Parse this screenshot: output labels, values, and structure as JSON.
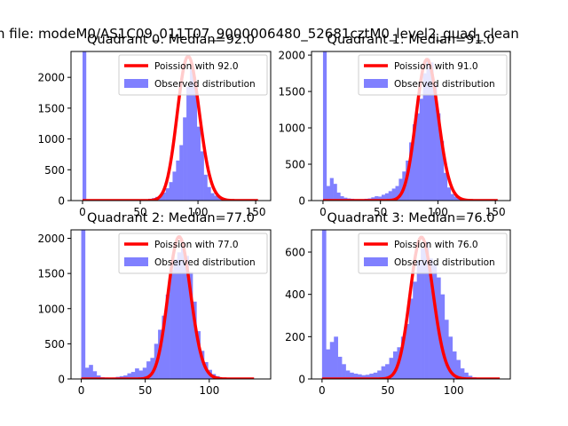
{
  "suptitle": "n file: modeM0/AS1C09_011T07_9000006480_52681cztM0_level2_quad_clean",
  "colors": {
    "hist": "#8080ff",
    "poisson": "#ff0000",
    "axis": "#000000"
  },
  "chart_data": [
    {
      "type": "bar",
      "title": "Quadrant 0: Median=92.0",
      "xlim": [
        -10,
        163
      ],
      "ylim": [
        0,
        2420
      ],
      "xticks": [
        0,
        50,
        100,
        150
      ],
      "yticks": [
        0,
        500,
        1000,
        1500,
        2000
      ],
      "legend": [
        "Poission with 92.0",
        "Observed distribution"
      ],
      "poisson_mean": 92,
      "poisson_scale": 2340,
      "hist_bins": [
        [
          0,
          2420
        ],
        [
          3,
          20
        ],
        [
          6,
          10
        ],
        [
          9,
          5
        ],
        [
          12,
          4
        ],
        [
          15,
          3
        ],
        [
          18,
          3
        ],
        [
          21,
          3
        ],
        [
          24,
          3
        ],
        [
          27,
          3
        ],
        [
          30,
          4
        ],
        [
          33,
          4
        ],
        [
          36,
          4
        ],
        [
          39,
          5
        ],
        [
          42,
          6
        ],
        [
          45,
          8
        ],
        [
          48,
          10
        ],
        [
          51,
          15
        ],
        [
          54,
          20
        ],
        [
          57,
          30
        ],
        [
          60,
          40
        ],
        [
          63,
          60
        ],
        [
          66,
          80
        ],
        [
          69,
          130
        ],
        [
          72,
          200
        ],
        [
          75,
          300
        ],
        [
          78,
          470
        ],
        [
          81,
          650
        ],
        [
          84,
          900
        ],
        [
          87,
          1350
        ],
        [
          90,
          1850
        ],
        [
          93,
          2150
        ],
        [
          96,
          1880
        ],
        [
          99,
          1200
        ],
        [
          102,
          800
        ],
        [
          105,
          420
        ],
        [
          108,
          220
        ],
        [
          111,
          120
        ],
        [
          114,
          80
        ],
        [
          117,
          55
        ],
        [
          120,
          35
        ],
        [
          123,
          20
        ],
        [
          126,
          10
        ],
        [
          129,
          5
        ],
        [
          132,
          3
        ],
        [
          135,
          2
        ],
        [
          138,
          2
        ],
        [
          141,
          1
        ],
        [
          144,
          1
        ],
        [
          147,
          1
        ],
        [
          150,
          1
        ]
      ]
    },
    {
      "type": "bar",
      "title": "Quadrant 1: Median=91.0",
      "xlim": [
        -10,
        163
      ],
      "ylim": [
        0,
        2050
      ],
      "xticks": [
        0,
        50,
        100,
        150
      ],
      "yticks": [
        0,
        500,
        1000,
        1500,
        2000
      ],
      "legend": [
        "Poission with 91.0",
        "Observed distribution"
      ],
      "poisson_mean": 91,
      "poisson_scale": 1940,
      "hist_bins": [
        [
          0,
          2050
        ],
        [
          3,
          200
        ],
        [
          6,
          310
        ],
        [
          9,
          230
        ],
        [
          12,
          110
        ],
        [
          15,
          60
        ],
        [
          18,
          40
        ],
        [
          21,
          30
        ],
        [
          24,
          25
        ],
        [
          27,
          20
        ],
        [
          30,
          20
        ],
        [
          33,
          20
        ],
        [
          36,
          25
        ],
        [
          39,
          30
        ],
        [
          42,
          45
        ],
        [
          45,
          60
        ],
        [
          48,
          55
        ],
        [
          51,
          80
        ],
        [
          54,
          100
        ],
        [
          57,
          130
        ],
        [
          60,
          165
        ],
        [
          63,
          200
        ],
        [
          66,
          300
        ],
        [
          69,
          400
        ],
        [
          72,
          550
        ],
        [
          75,
          800
        ],
        [
          78,
          1050
        ],
        [
          81,
          1200
        ],
        [
          84,
          1400
        ],
        [
          87,
          1750
        ],
        [
          90,
          1950
        ],
        [
          93,
          1900
        ],
        [
          96,
          1600
        ],
        [
          99,
          1200
        ],
        [
          102,
          820
        ],
        [
          105,
          380
        ],
        [
          108,
          180
        ],
        [
          111,
          90
        ],
        [
          114,
          55
        ],
        [
          117,
          30
        ],
        [
          120,
          20
        ],
        [
          123,
          10
        ],
        [
          126,
          5
        ],
        [
          129,
          3
        ],
        [
          132,
          2
        ],
        [
          135,
          2
        ],
        [
          138,
          1
        ],
        [
          141,
          1
        ],
        [
          144,
          1
        ],
        [
          147,
          1
        ],
        [
          150,
          1
        ]
      ]
    },
    {
      "type": "bar",
      "title": "Quadrant 2: Median=77.0",
      "xlim": [
        -8,
        148
      ],
      "ylim": [
        0,
        2120
      ],
      "xticks": [
        0,
        50,
        100
      ],
      "yticks": [
        0,
        500,
        1000,
        1500,
        2000
      ],
      "legend": [
        "Poission with 77.0",
        "Observed distribution"
      ],
      "poisson_mean": 77,
      "poisson_scale": 2020,
      "hist_bins": [
        [
          0,
          2120
        ],
        [
          3,
          160
        ],
        [
          6,
          200
        ],
        [
          9,
          110
        ],
        [
          12,
          50
        ],
        [
          15,
          25
        ],
        [
          18,
          20
        ],
        [
          21,
          15
        ],
        [
          24,
          20
        ],
        [
          27,
          30
        ],
        [
          30,
          40
        ],
        [
          33,
          50
        ],
        [
          36,
          80
        ],
        [
          39,
          100
        ],
        [
          42,
          150
        ],
        [
          45,
          120
        ],
        [
          48,
          160
        ],
        [
          51,
          250
        ],
        [
          54,
          300
        ],
        [
          57,
          500
        ],
        [
          60,
          700
        ],
        [
          63,
          900
        ],
        [
          66,
          1200
        ],
        [
          69,
          1550
        ],
        [
          72,
          1700
        ],
        [
          75,
          1800
        ],
        [
          78,
          1950
        ],
        [
          81,
          1750
        ],
        [
          84,
          1520
        ],
        [
          87,
          1100
        ],
        [
          90,
          680
        ],
        [
          93,
          400
        ],
        [
          96,
          240
        ],
        [
          99,
          130
        ],
        [
          102,
          70
        ],
        [
          105,
          40
        ],
        [
          108,
          20
        ],
        [
          111,
          10
        ],
        [
          114,
          5
        ],
        [
          117,
          3
        ],
        [
          120,
          2
        ],
        [
          123,
          1
        ],
        [
          126,
          1
        ],
        [
          129,
          1
        ],
        [
          132,
          1
        ],
        [
          135,
          1
        ]
      ]
    },
    {
      "type": "bar",
      "title": "Quadrant 3: Median=76.0",
      "xlim": [
        -8,
        143
      ],
      "ylim": [
        0,
        705
      ],
      "xticks": [
        0,
        50,
        100
      ],
      "yticks": [
        0,
        200,
        400,
        600
      ],
      "legend": [
        "Poission with 76.0",
        "Observed distribution"
      ],
      "poisson_mean": 76,
      "poisson_scale": 670,
      "hist_bins": [
        [
          0,
          705
        ],
        [
          3,
          140
        ],
        [
          6,
          175
        ],
        [
          9,
          200
        ],
        [
          12,
          105
        ],
        [
          15,
          70
        ],
        [
          18,
          40
        ],
        [
          21,
          30
        ],
        [
          24,
          25
        ],
        [
          27,
          22
        ],
        [
          30,
          18
        ],
        [
          33,
          20
        ],
        [
          36,
          25
        ],
        [
          39,
          30
        ],
        [
          42,
          40
        ],
        [
          45,
          60
        ],
        [
          48,
          70
        ],
        [
          51,
          100
        ],
        [
          54,
          130
        ],
        [
          57,
          150
        ],
        [
          60,
          200
        ],
        [
          63,
          260
        ],
        [
          66,
          380
        ],
        [
          69,
          460
        ],
        [
          72,
          560
        ],
        [
          75,
          620
        ],
        [
          78,
          650
        ],
        [
          81,
          570
        ],
        [
          84,
          540
        ],
        [
          87,
          480
        ],
        [
          90,
          400
        ],
        [
          93,
          280
        ],
        [
          96,
          200
        ],
        [
          99,
          130
        ],
        [
          102,
          90
        ],
        [
          105,
          50
        ],
        [
          108,
          30
        ],
        [
          111,
          15
        ],
        [
          114,
          8
        ],
        [
          117,
          5
        ],
        [
          120,
          3
        ],
        [
          123,
          2
        ],
        [
          126,
          1
        ],
        [
          129,
          1
        ],
        [
          132,
          1
        ]
      ]
    }
  ]
}
